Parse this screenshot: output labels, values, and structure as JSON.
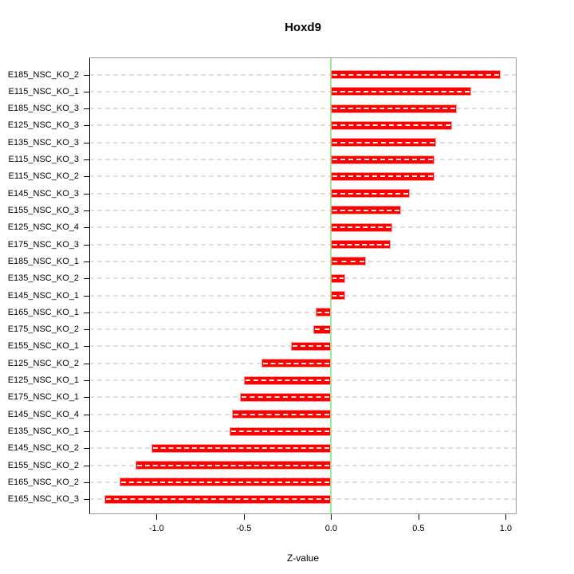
{
  "title": "Hoxd9",
  "chart_data": {
    "type": "bar",
    "orientation": "horizontal",
    "title": "Hoxd9",
    "xlabel": "Z-value",
    "ylabel": "",
    "xlim": [
      -1.385,
      1.062
    ],
    "xtick_values": [
      -1.0,
      -0.5,
      0.0,
      0.5,
      1.0
    ],
    "xtick_labels": [
      "-1.0",
      "-0.5",
      "0.0",
      "0.5",
      "1.0"
    ],
    "grid": true,
    "legend": "none",
    "zero_line_color": "#90EE90",
    "bar_color": "#ff0000",
    "bar_border_color": "#ff9a9a",
    "gridline_color": "#dedede",
    "categories": [
      "E185_NSC_KO_2",
      "E115_NSC_KO_1",
      "E185_NSC_KO_3",
      "E125_NSC_KO_3",
      "E135_NSC_KO_3",
      "E115_NSC_KO_3",
      "E115_NSC_KO_2",
      "E145_NSC_KO_3",
      "E155_NSC_KO_3",
      "E125_NSC_KO_4",
      "E175_NSC_KO_3",
      "E185_NSC_KO_1",
      "E135_NSC_KO_2",
      "E145_NSC_KO_1",
      "E165_NSC_KO_1",
      "E175_NSC_KO_2",
      "E155_NSC_KO_1",
      "E125_NSC_KO_2",
      "E125_NSC_KO_1",
      "E175_NSC_KO_1",
      "E145_NSC_KO_4",
      "E135_NSC_KO_1",
      "E145_NSC_KO_2",
      "E155_NSC_KO_2",
      "E165_NSC_KO_2",
      "E165_NSC_KO_3"
    ],
    "values": [
      0.97,
      0.8,
      0.72,
      0.69,
      0.6,
      0.59,
      0.59,
      0.45,
      0.4,
      0.35,
      0.34,
      0.2,
      0.08,
      0.08,
      -0.09,
      -0.1,
      -0.23,
      -0.4,
      -0.5,
      -0.52,
      -0.57,
      -0.58,
      -1.03,
      -1.12,
      -1.21,
      -1.3
    ]
  }
}
